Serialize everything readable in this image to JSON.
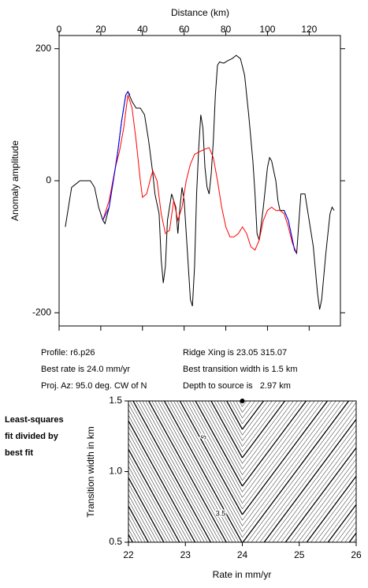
{
  "chart_data": [
    {
      "type": "line",
      "x_label": "Distance (km)",
      "y_label": "Anomaly amplitude",
      "xlim": [
        0,
        135
      ],
      "ylim": [
        -220,
        220
      ],
      "xticks": [
        0,
        20,
        40,
        60,
        80,
        100,
        120
      ],
      "yticks": [
        -200,
        0,
        200
      ],
      "series": [
        {
          "color": "#000000",
          "x": [
            3,
            5,
            6,
            8,
            10,
            13,
            15,
            17,
            19,
            21,
            22,
            24,
            26,
            28,
            30,
            32,
            33,
            35,
            37,
            39,
            41,
            43,
            45,
            46,
            48,
            49,
            50,
            51,
            52,
            54,
            56,
            57,
            58,
            59,
            60,
            62,
            63,
            64,
            65,
            66,
            67,
            68,
            69,
            70,
            71,
            72,
            73,
            74,
            75,
            76,
            77,
            79,
            81,
            83,
            85,
            87,
            89,
            91,
            93,
            94,
            95,
            96,
            98,
            100,
            101,
            102,
            104,
            105,
            106,
            108,
            110,
            112,
            113,
            114,
            116,
            118,
            120,
            122,
            124,
            125,
            126,
            128,
            130,
            131,
            132
          ],
          "values": [
            -70,
            -30,
            -10,
            -5,
            0,
            0,
            0,
            -10,
            -40,
            -60,
            -65,
            -40,
            0,
            40,
            90,
            130,
            135,
            120,
            110,
            110,
            100,
            60,
            10,
            -20,
            -50,
            -120,
            -155,
            -130,
            -60,
            -20,
            -40,
            -80,
            -40,
            -10,
            -30,
            -130,
            -180,
            -190,
            -130,
            -20,
            50,
            100,
            80,
            20,
            -10,
            -20,
            10,
            60,
            130,
            175,
            180,
            178,
            182,
            185,
            190,
            185,
            160,
            100,
            30,
            -20,
            -80,
            -90,
            -40,
            20,
            35,
            30,
            0,
            -30,
            -45,
            -45,
            -60,
            -90,
            -105,
            -110,
            -20,
            -20,
            -60,
            -100,
            -170,
            -195,
            -180,
            -110,
            -50,
            -40,
            -45
          ]
        },
        {
          "color": "#ff0000",
          "x": [
            21,
            24,
            27,
            29,
            31,
            33,
            35,
            37,
            39,
            40,
            42,
            44,
            45,
            47,
            49,
            51,
            53,
            55,
            57,
            59,
            61,
            63,
            65,
            68,
            70,
            72,
            74,
            76,
            78,
            80,
            82,
            84,
            86,
            88,
            90,
            92,
            94,
            96,
            98,
            100,
            102,
            104,
            106,
            108,
            110,
            112,
            114
          ],
          "values": [
            -60,
            -30,
            20,
            45,
            80,
            130,
            110,
            60,
            0,
            -25,
            -20,
            5,
            15,
            0,
            -50,
            -80,
            -75,
            -30,
            -60,
            -40,
            0,
            25,
            40,
            45,
            48,
            50,
            35,
            0,
            -40,
            -70,
            -85,
            -85,
            -80,
            -70,
            -80,
            -100,
            -105,
            -90,
            -60,
            -45,
            -40,
            -45,
            -45,
            -50,
            -70,
            -95,
            -110
          ]
        },
        {
          "color": "#0000ff",
          "x": [
            21,
            24,
            26,
            28,
            30,
            32,
            33,
            34,
            null,
            108,
            110,
            112,
            113,
            114
          ],
          "values": [
            -60,
            -40,
            0,
            40,
            90,
            130,
            135,
            130,
            null,
            -45,
            -60,
            -90,
            -105,
            -110
          ]
        }
      ]
    },
    {
      "type": "contour",
      "x_label": "Rate in mm/yr",
      "y_label": "Transition width in km",
      "xlim": [
        22,
        26
      ],
      "ylim": [
        0.5,
        1.5
      ],
      "xticks": [
        22,
        23,
        24,
        25,
        26
      ],
      "yticks": [
        0.5,
        {
          "value": 1,
          "label": "1.0"
        },
        1.5
      ],
      "best_fit": {
        "x": 24.0,
        "y": 1.5
      },
      "contour_labels": [
        "5",
        "3.5"
      ]
    }
  ],
  "profile_info": {
    "left": [
      "Profile: r6.p26",
      "Best rate is 24.0 mm/yr",
      "Proj. Az: 95.0 deg. CW of N"
    ],
    "right": [
      "Ridge Xing is 23.05 315.07",
      "Best transition width is 1.5 km",
      "Depth to source is   2.97 km"
    ]
  },
  "side_note": [
    "Least-squares",
    "fit divided by",
    "best fit"
  ]
}
